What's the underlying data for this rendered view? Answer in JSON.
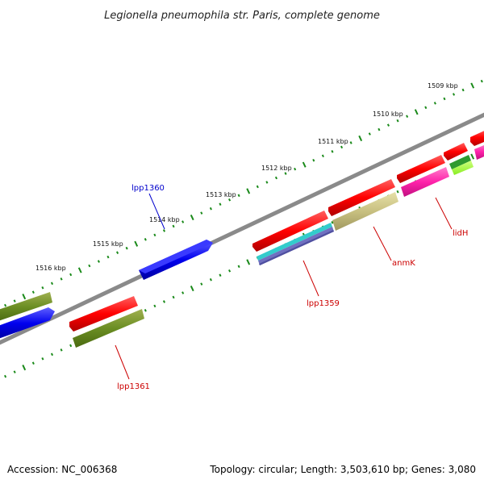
{
  "title": "Legionella pneumophila str. Paris, complete genome",
  "accession": "Accession: NC_006368",
  "summary": "Topology: circular; Length: 3,503,610 bp; Genes: 3,080",
  "kbp_labels": [
    "1509 kbp",
    "1510 kbp",
    "1511 kbp",
    "1512 kbp",
    "1513 kbp",
    "1514 kbp",
    "1515 kbp",
    "1516 kbp"
  ],
  "gene_labels": {
    "lpp1360": "lpp1360",
    "lpp1359": "lpp1359",
    "lpp1361": "lpp1361",
    "anmK": "anmK",
    "lidH": "lidH"
  },
  "colors": {
    "backbone": "#808080",
    "tick": "#1a8a1a",
    "forward_label": "#0000cc",
    "reverse_label": "#cc0000",
    "red": "#ff1a1a",
    "olive": "#6b8e23",
    "blue": "#1a1aff",
    "khaki": "#c8c080",
    "magenta": "#ff33aa",
    "teal": "#33cccc",
    "slate": "#7070c0",
    "lime": "#99ff33",
    "green": "#33aa33"
  }
}
